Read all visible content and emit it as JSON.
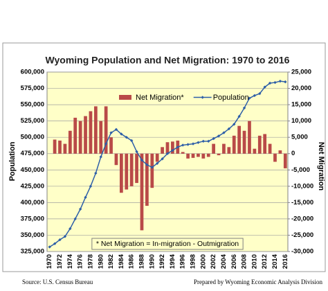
{
  "chart_data": {
    "type": "bar-line",
    "title": "Wyoming Population and Net Migration: 1970 to 2016",
    "y_label": "Population",
    "y2_label": "Net Migration",
    "note": "* Net Migration = In-migration - Outmigration",
    "source": "Source: U.S. Census Bureau",
    "credit": "Prepared by Wyoming Economic Analysis Division",
    "categories": [
      "1970",
      null,
      "1972",
      null,
      "1974",
      null,
      "1976",
      null,
      "1978",
      null,
      "1980",
      null,
      "1982",
      null,
      "1984",
      null,
      "1986",
      null,
      "1988",
      null,
      "1990",
      null,
      "1992",
      null,
      "1994",
      null,
      "1996",
      null,
      "1998",
      null,
      "2000",
      null,
      "2002",
      null,
      "2004",
      null,
      "2006",
      null,
      "2008",
      null,
      "2010",
      null,
      "2012",
      null,
      "2014",
      null,
      "2016"
    ],
    "series": [
      {
        "name": "Net Migration*",
        "type": "bar",
        "axis": "y2",
        "color": "#b94a48",
        "values": [
          null,
          4300,
          4000,
          3000,
          7000,
          11000,
          10000,
          11500,
          13000,
          14500,
          10000,
          14500,
          5000,
          -3500,
          -12000,
          -11000,
          -10000,
          -9000,
          -23500,
          -16000,
          -10500,
          -2500,
          2000,
          3500,
          3700,
          4000,
          500,
          -1500,
          -1300,
          -1000,
          -1500,
          -1000,
          3000,
          -500,
          3000,
          2000,
          5500,
          8500,
          7000,
          10000,
          1500,
          5500,
          6000,
          3000,
          -2500,
          1000,
          -4500
        ]
      },
      {
        "name": "Population",
        "type": "line",
        "axis": "y",
        "color": "#2e5fa8",
        "values": [
          332000,
          337000,
          343000,
          348000,
          360000,
          375000,
          390000,
          408000,
          425000,
          445000,
          470000,
          490000,
          507000,
          512000,
          505000,
          500000,
          495000,
          478000,
          465000,
          458000,
          454000,
          460000,
          467000,
          475000,
          480000,
          485000,
          488000,
          489000,
          490000,
          492000,
          494000,
          494000,
          498000,
          502000,
          507000,
          513000,
          520000,
          532000,
          545000,
          560000,
          564000,
          567000,
          577000,
          583000,
          584000,
          586000,
          585000
        ]
      }
    ],
    "ylim": [
      325000,
      600000
    ],
    "yticks": [
      {
        "value": 325000,
        "label": "325,000"
      },
      {
        "value": 350000,
        "label": "350,000"
      },
      {
        "value": 375000,
        "label": "375,000"
      },
      {
        "value": 400000,
        "label": "400,000"
      },
      {
        "value": 425000,
        "label": "425,000"
      },
      {
        "value": 450000,
        "label": "450,000"
      },
      {
        "value": 475000,
        "label": "475,000"
      },
      {
        "value": 500000,
        "label": "500,000"
      },
      {
        "value": 525000,
        "label": "525,000"
      },
      {
        "value": 550000,
        "label": "550,000"
      },
      {
        "value": 575000,
        "label": "575,000"
      },
      {
        "value": 600000,
        "label": "600,000"
      }
    ],
    "y2lim": [
      -30000,
      25000
    ],
    "y2ticks": [
      {
        "value": -30000,
        "label": "-30,000"
      },
      {
        "value": -25000,
        "label": "-25,000"
      },
      {
        "value": -20000,
        "label": "-20,000"
      },
      {
        "value": -15000,
        "label": "-15,000"
      },
      {
        "value": -10000,
        "label": "-10,000"
      },
      {
        "value": -5000,
        "label": "-5,000"
      },
      0,
      {
        "value": 5000,
        "label": "5,000"
      },
      {
        "value": 10000,
        "label": "10,000"
      },
      {
        "value": 15000,
        "label": "15,000"
      },
      {
        "value": 20000,
        "label": "20,000"
      },
      {
        "value": 25000,
        "label": "25,000"
      }
    ],
    "grid": true,
    "background": "#ffffc8"
  }
}
